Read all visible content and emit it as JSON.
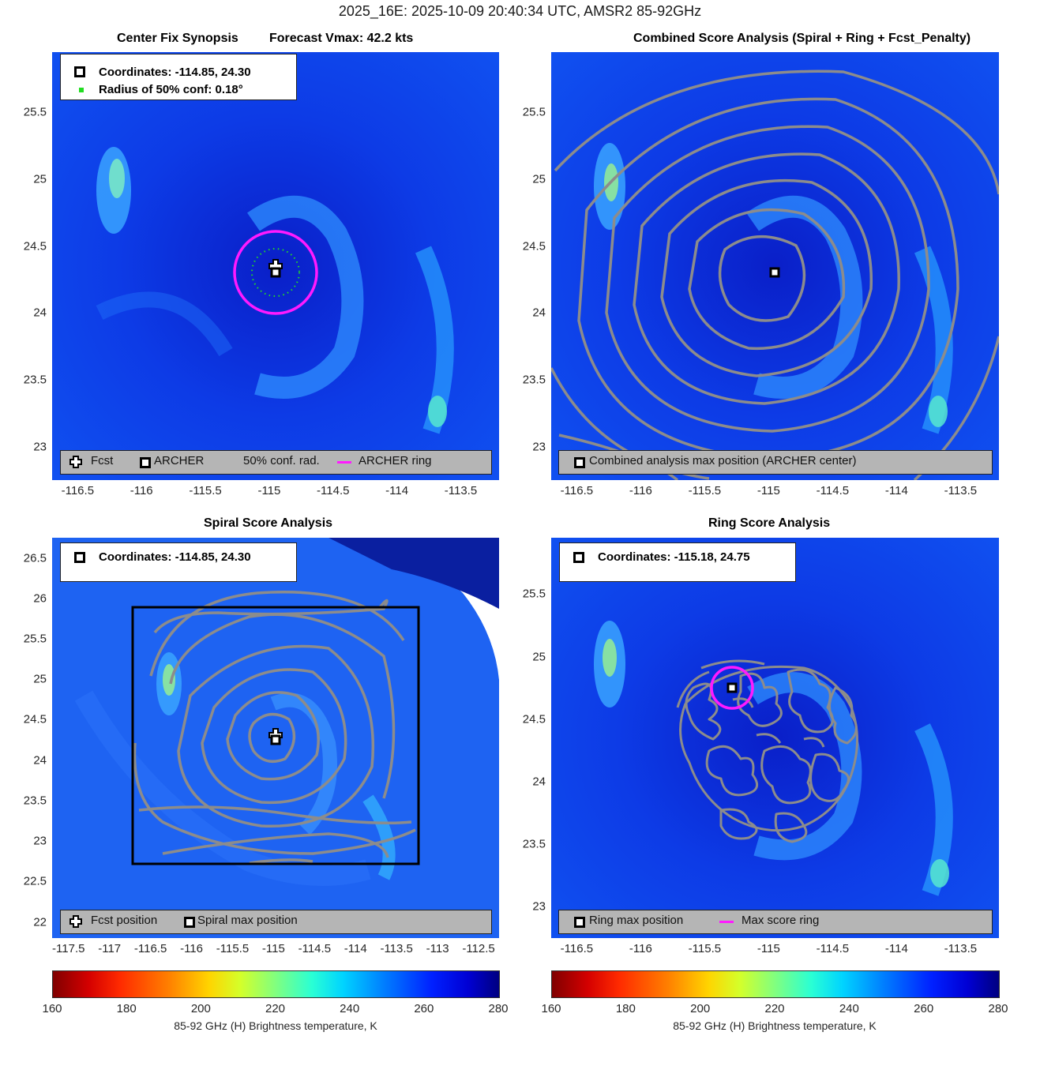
{
  "figure": {
    "title": "2025_16E: 2025-10-09 20:40:34 UTC, AMSR2 85-92GHz"
  },
  "colors": {
    "background_field": "#0a2fe0",
    "contour": "#8c8c8c",
    "archer_ring": "#ff1aff",
    "conf_dots": "#22dd22",
    "box": "#000000",
    "legend_bg": "#b5b5b5"
  },
  "panels": {
    "synopsis": {
      "title_left": "Center Fix Synopsis",
      "title_right": "Forecast Vmax: 42.2 kts",
      "info_coordinates": "Coordinates: -114.85, 24.30",
      "info_radius": "Radius of 50% conf: 0.18°",
      "legend": {
        "fcst": "Fcst",
        "archer": "ARCHER",
        "conf": "50% conf. rad.",
        "ring": "ARCHER ring"
      }
    },
    "combined": {
      "title": "Combined Score Analysis (Spiral + Ring + Fcst_Penalty)",
      "legend": {
        "max_pos": "Combined analysis max position (ARCHER center)"
      }
    },
    "spiral": {
      "title": "Spiral Score Analysis",
      "info_coordinates": "Coordinates: -114.85, 24.30",
      "legend": {
        "fcst": "Fcst position",
        "spiral": "Spiral max position"
      }
    },
    "ring": {
      "title": "Ring Score Analysis",
      "info_coordinates": "Coordinates: -115.18, 24.75",
      "legend": {
        "ring_max": "Ring max position",
        "max_ring": "Max score ring"
      }
    }
  },
  "colorbar": {
    "ticks": [
      "160",
      "180",
      "200",
      "220",
      "240",
      "260",
      "280"
    ],
    "label": "85-92 GHz (H) Brightness temperature, K",
    "range": [
      160,
      280
    ],
    "colormap": "jet_reversed"
  },
  "chart_data": [
    {
      "type": "heatmap",
      "title": "Center Fix Synopsis     Forecast Vmax: 42.2 kts",
      "xlim": [
        -116.7,
        -113.2
      ],
      "ylim": [
        22.75,
        25.95
      ],
      "x_ticks": [
        "-116.5",
        "-116",
        "-115.5",
        "-115",
        "-114.5",
        "-114",
        "-113.5"
      ],
      "y_ticks": [
        "23",
        "23.5",
        "24",
        "24.5",
        "25",
        "25.5"
      ],
      "archer_center": [
        -114.85,
        24.3
      ],
      "forecast_position": [
        -114.85,
        24.35
      ],
      "conf_radius_deg": 0.18,
      "archer_ring_radius_deg": 0.32
    },
    {
      "type": "heatmap",
      "title": "Combined Score Analysis (Spiral + Ring + Fcst_Penalty)",
      "xlim": [
        -116.7,
        -113.2
      ],
      "ylim": [
        22.75,
        25.95
      ],
      "x_ticks": [
        "-116.5",
        "-116",
        "-115.5",
        "-115",
        "-114.5",
        "-114",
        "-113.5"
      ],
      "y_ticks": [
        "23",
        "23.5",
        "24",
        "24.5",
        "25",
        "25.5"
      ],
      "max_position": [
        -114.85,
        24.3
      ],
      "contour_center": [
        -115.1,
        24.3
      ]
    },
    {
      "type": "heatmap",
      "title": "Spiral Score Analysis",
      "xlim": [
        -117.7,
        -112.25
      ],
      "ylim": [
        21.8,
        26.75
      ],
      "x_ticks": [
        "-117.5",
        "-117",
        "-116.5",
        "-116",
        "-115.5",
        "-115",
        "-114.5",
        "-114",
        "-113.5",
        "-113",
        "-112.5"
      ],
      "y_ticks": [
        "22",
        "22.5",
        "23",
        "23.5",
        "24",
        "24.5",
        "25",
        "25.5",
        "26",
        "26.5"
      ],
      "spiral_max_position": [
        -114.85,
        24.3
      ],
      "search_box": {
        "lon": [
          -116.75,
          -113.25
        ],
        "lat": [
          22.75,
          25.95
        ]
      }
    },
    {
      "type": "heatmap",
      "title": "Ring Score Analysis",
      "xlim": [
        -116.7,
        -113.2
      ],
      "ylim": [
        22.75,
        25.95
      ],
      "x_ticks": [
        "-116.5",
        "-116",
        "-115.5",
        "-115",
        "-114.5",
        "-114",
        "-113.5"
      ],
      "y_ticks": [
        "23",
        "23.5",
        "24",
        "24.5",
        "25",
        "25.5"
      ],
      "ring_max_position": [
        -115.18,
        24.75
      ],
      "max_score_ring_radius_deg": 0.17
    }
  ]
}
